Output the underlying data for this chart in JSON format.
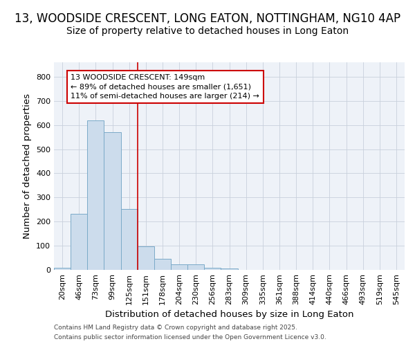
{
  "title_line1": "13, WOODSIDE CRESCENT, LONG EATON, NOTTINGHAM, NG10 4AP",
  "title_line2": "Size of property relative to detached houses in Long Eaton",
  "xlabel": "Distribution of detached houses by size in Long Eaton",
  "ylabel": "Number of detached properties",
  "categories": [
    "20sqm",
    "46sqm",
    "73sqm",
    "99sqm",
    "125sqm",
    "151sqm",
    "178sqm",
    "204sqm",
    "230sqm",
    "256sqm",
    "283sqm",
    "309sqm",
    "335sqm",
    "361sqm",
    "388sqm",
    "414sqm",
    "440sqm",
    "466sqm",
    "493sqm",
    "519sqm",
    "545sqm"
  ],
  "values": [
    10,
    233,
    620,
    570,
    253,
    98,
    47,
    22,
    22,
    10,
    5,
    0,
    0,
    0,
    0,
    0,
    0,
    0,
    0,
    0,
    0
  ],
  "bar_color": "#ccdcec",
  "bar_edge_color": "#7aaac8",
  "background_color": "#eef2f8",
  "vline_x_index": 5,
  "vline_color": "#cc0000",
  "annotation_line1": "13 WOODSIDE CRESCENT: 149sqm",
  "annotation_line2": "← 89% of detached houses are smaller (1,651)",
  "annotation_line3": "11% of semi-detached houses are larger (214) →",
  "ylim": [
    0,
    860
  ],
  "yticks": [
    0,
    100,
    200,
    300,
    400,
    500,
    600,
    700,
    800
  ],
  "footer_line1": "Contains HM Land Registry data © Crown copyright and database right 2025.",
  "footer_line2": "Contains public sector information licensed under the Open Government Licence v3.0.",
  "grid_color": "#c8d0dc",
  "title1_fontsize": 12,
  "title2_fontsize": 10,
  "tick_fontsize": 8,
  "label_fontsize": 9.5,
  "annot_fontsize": 8,
  "footer_fontsize": 6.5
}
